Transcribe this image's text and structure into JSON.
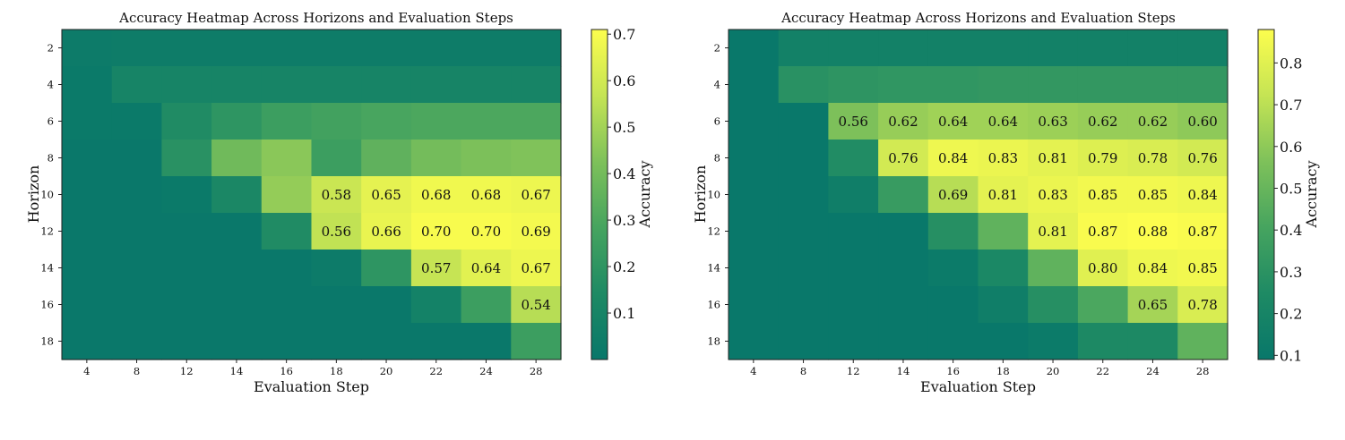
{
  "chart_data": [
    {
      "type": "heatmap",
      "title": "Accuracy Heatmap Across Horizons and Evaluation Steps",
      "xlabel": "Evaluation Step",
      "ylabel": "Horizon",
      "x_categories": [
        "4",
        "8",
        "12",
        "14",
        "16",
        "18",
        "20",
        "22",
        "24",
        "28"
      ],
      "y_categories": [
        "2",
        "4",
        "6",
        "8",
        "10",
        "12",
        "14",
        "16",
        "18"
      ],
      "colorbar": {
        "label": "Accuracy",
        "vmin": 0.0,
        "vmax": 0.71,
        "ticks": [
          "0.1",
          "0.2",
          "0.3",
          "0.4",
          "0.5",
          "0.6",
          "0.7"
        ]
      },
      "annotation_threshold": 0.5,
      "values": [
        [
          0.03,
          0.04,
          0.04,
          0.04,
          0.04,
          0.04,
          0.04,
          0.04,
          0.04,
          0.04
        ],
        [
          0.02,
          0.1,
          0.1,
          0.1,
          0.1,
          0.1,
          0.1,
          0.1,
          0.1,
          0.1
        ],
        [
          0.02,
          0.02,
          0.15,
          0.2,
          0.25,
          0.27,
          0.29,
          0.3,
          0.3,
          0.3
        ],
        [
          0.01,
          0.01,
          0.18,
          0.39,
          0.45,
          0.25,
          0.35,
          0.4,
          0.42,
          0.43
        ],
        [
          0.01,
          0.01,
          0.02,
          0.12,
          0.47,
          0.58,
          0.65,
          0.68,
          0.68,
          0.67
        ],
        [
          0.01,
          0.01,
          0.01,
          0.01,
          0.15,
          0.56,
          0.66,
          0.7,
          0.7,
          0.69
        ],
        [
          0.01,
          0.01,
          0.01,
          0.01,
          0.01,
          0.03,
          0.2,
          0.57,
          0.64,
          0.67
        ],
        [
          0.01,
          0.01,
          0.01,
          0.01,
          0.01,
          0.01,
          0.01,
          0.08,
          0.25,
          0.54
        ],
        [
          0.01,
          0.01,
          0.01,
          0.01,
          0.01,
          0.01,
          0.01,
          0.01,
          0.01,
          0.25
        ]
      ]
    },
    {
      "type": "heatmap",
      "title": "Accuracy Heatmap Across Horizons and Evaluation Steps",
      "xlabel": "Evaluation Step",
      "ylabel": "Horizon",
      "x_categories": [
        "4",
        "8",
        "12",
        "14",
        "16",
        "18",
        "20",
        "22",
        "24",
        "28"
      ],
      "y_categories": [
        "2",
        "4",
        "6",
        "8",
        "10",
        "12",
        "14",
        "16",
        "18"
      ],
      "colorbar": {
        "label": "Accuracy",
        "vmin": 0.09,
        "vmax": 0.88,
        "ticks": [
          "0.1",
          "0.2",
          "0.3",
          "0.4",
          "0.5",
          "0.6",
          "0.7",
          "0.8"
        ]
      },
      "annotation_threshold": 0.55,
      "values": [
        [
          0.1,
          0.17,
          0.17,
          0.17,
          0.17,
          0.17,
          0.17,
          0.17,
          0.17,
          0.17
        ],
        [
          0.1,
          0.29,
          0.31,
          0.32,
          0.32,
          0.33,
          0.33,
          0.33,
          0.33,
          0.33
        ],
        [
          0.1,
          0.1,
          0.56,
          0.62,
          0.64,
          0.64,
          0.63,
          0.62,
          0.62,
          0.6
        ],
        [
          0.1,
          0.1,
          0.26,
          0.76,
          0.84,
          0.83,
          0.81,
          0.79,
          0.78,
          0.76
        ],
        [
          0.1,
          0.1,
          0.15,
          0.35,
          0.69,
          0.81,
          0.83,
          0.85,
          0.85,
          0.84
        ],
        [
          0.1,
          0.1,
          0.1,
          0.1,
          0.28,
          0.48,
          0.81,
          0.87,
          0.88,
          0.87
        ],
        [
          0.1,
          0.1,
          0.1,
          0.1,
          0.12,
          0.23,
          0.48,
          0.8,
          0.84,
          0.85
        ],
        [
          0.1,
          0.1,
          0.1,
          0.1,
          0.1,
          0.15,
          0.28,
          0.42,
          0.65,
          0.78
        ],
        [
          0.1,
          0.1,
          0.1,
          0.1,
          0.1,
          0.1,
          0.12,
          0.24,
          0.24,
          0.48
        ]
      ]
    }
  ]
}
